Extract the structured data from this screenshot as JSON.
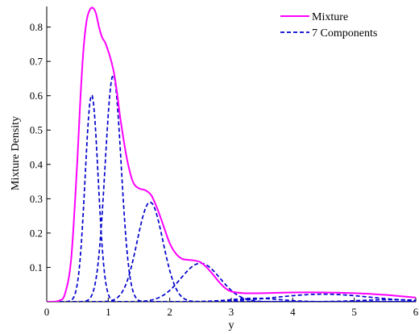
{
  "chart_data": {
    "type": "line",
    "title": "",
    "xlabel": "y",
    "ylabel": "Mixture Density",
    "xlim": [
      0,
      6
    ],
    "ylim": [
      0,
      0.86
    ],
    "xticks": [
      0,
      1,
      2,
      3,
      4,
      5,
      6
    ],
    "yticks": [
      0.1,
      0.2,
      0.3,
      0.4,
      0.5,
      0.6,
      0.7,
      0.8
    ],
    "grid": false,
    "legend": "top-right",
    "series": [
      {
        "name": "Mixture",
        "color": "#ff00ff",
        "style": "solid",
        "x": [
          0,
          0.2,
          0.3,
          0.4,
          0.5,
          0.55,
          0.6,
          0.65,
          0.7,
          0.75,
          0.8,
          0.85,
          0.9,
          0.95,
          1.0,
          1.05,
          1.1,
          1.15,
          1.2,
          1.3,
          1.4,
          1.5,
          1.6,
          1.7,
          1.8,
          1.9,
          2.0,
          2.1,
          2.2,
          2.3,
          2.4,
          2.5,
          2.6,
          2.7,
          2.8,
          2.9,
          3.0,
          3.2,
          3.5,
          4.0,
          4.5,
          5.0,
          5.5,
          6.0
        ],
        "y": [
          0,
          0.003,
          0.025,
          0.13,
          0.42,
          0.6,
          0.74,
          0.82,
          0.85,
          0.856,
          0.84,
          0.8,
          0.77,
          0.755,
          0.73,
          0.7,
          0.66,
          0.6,
          0.53,
          0.42,
          0.35,
          0.33,
          0.325,
          0.31,
          0.27,
          0.22,
          0.17,
          0.14,
          0.125,
          0.122,
          0.12,
          0.115,
          0.1,
          0.08,
          0.058,
          0.04,
          0.03,
          0.025,
          0.025,
          0.027,
          0.027,
          0.025,
          0.02,
          0.012
        ]
      },
      {
        "name": "7 Components",
        "color": "#0000cc",
        "style": "dashed",
        "components": [
          {
            "mean": 0.73,
            "sd": 0.105,
            "peak": 0.603
          },
          {
            "mean": 1.08,
            "sd": 0.13,
            "peak": 0.66
          },
          {
            "mean": 1.68,
            "sd": 0.21,
            "peak": 0.29
          },
          {
            "mean": 2.5,
            "sd": 0.32,
            "peak": 0.112
          },
          {
            "mean": 3.4,
            "sd": 0.4,
            "peak": 0.01
          },
          {
            "mean": 4.5,
            "sd": 0.75,
            "peak": 0.022
          },
          {
            "mean": 5.6,
            "sd": 0.5,
            "peak": 0.006
          }
        ]
      }
    ]
  }
}
